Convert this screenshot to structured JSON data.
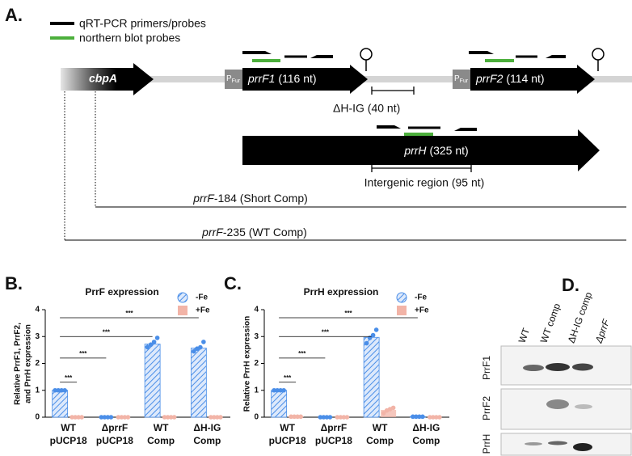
{
  "panel_a": {
    "label": "A.",
    "legend": [
      "qRT-PCR primers/probes",
      "northern blot probes"
    ],
    "cbpA": "cbpA",
    "promoter": {
      "p": "P",
      "sub": "Fur"
    },
    "prrF1": {
      "gene": "prrF1",
      "size": "(116 nt)"
    },
    "prrF2": {
      "gene": "prrF2",
      "size": "(114 nt)"
    },
    "prrH": {
      "gene": "prrH",
      "size": "(325 nt)"
    },
    "dhig": "ΔH-IG (40 nt)",
    "intergenic": "Intergenic region (95 nt)",
    "short_comp": {
      "gene": "prrF",
      "rest": "-184 (Short Comp)"
    },
    "wt_comp": {
      "gene": "prrF",
      "rest": "-235 (WT Comp)"
    }
  },
  "chart_data": [
    {
      "type": "bar",
      "label": "B.",
      "title": "PrrF expression",
      "ylabel": [
        "Relative PrrF1, PrrF2,",
        "and PrrH  expression"
      ],
      "categories": [
        [
          "WT",
          "pUCP18"
        ],
        [
          "ΔprrF",
          "pUCP18"
        ],
        [
          "WT",
          "Comp"
        ],
        [
          "ΔH-IG",
          "Comp"
        ]
      ],
      "series": [
        {
          "name": "-Fe",
          "color": "#4a8ee8",
          "hatch": true,
          "values": [
            1,
            0,
            2.72,
            2.57
          ],
          "points": [
            [
              1,
              1,
              1,
              1
            ],
            [
              0,
              0,
              0,
              0
            ],
            [
              2.6,
              2.7,
              2.8,
              2.95
            ],
            [
              2.45,
              2.55,
              2.6,
              2.8
            ]
          ]
        },
        {
          "name": "+Fe",
          "color": "#f2b4a7",
          "hatch": false,
          "values": [
            0,
            0,
            0,
            0
          ],
          "points": [
            [
              0,
              0,
              0,
              0
            ],
            [
              0,
              0,
              0,
              0
            ],
            [
              0,
              0,
              0,
              0
            ],
            [
              0,
              0,
              0,
              0
            ]
          ]
        }
      ],
      "ylim": [
        0,
        4
      ],
      "yticks": [
        0,
        1,
        2,
        3,
        4
      ],
      "significance": [
        {
          "label": "***",
          "y": 1.3,
          "from": [
            0,
            0
          ],
          "to": [
            0,
            1
          ]
        },
        {
          "label": "***",
          "y": 2.2,
          "from": [
            0,
            0
          ],
          "to": [
            1,
            0
          ]
        },
        {
          "label": "***",
          "y": 3.0,
          "from": [
            0,
            0
          ],
          "to": [
            2,
            0
          ]
        },
        {
          "label": "***",
          "y": 3.7,
          "from": [
            0,
            0
          ],
          "to": [
            3,
            0
          ]
        }
      ]
    },
    {
      "type": "bar",
      "label": "C.",
      "title": "PrrH expression",
      "ylabel": [
        "Relative PrrH expression"
      ],
      "categories": [
        [
          "WT",
          "pUCP18"
        ],
        [
          "ΔprrF",
          "pUCP18"
        ],
        [
          "WT",
          "Comp"
        ],
        [
          "ΔH-IG",
          "Comp"
        ]
      ],
      "series": [
        {
          "name": "-Fe",
          "color": "#4a8ee8",
          "hatch": true,
          "values": [
            1,
            0,
            2.97,
            0.02
          ],
          "points": [
            [
              1,
              1,
              1,
              1
            ],
            [
              0,
              0,
              0,
              0
            ],
            [
              2.75,
              2.95,
              3.05,
              3.25
            ],
            [
              0.02,
              0.02,
              0.02,
              0.02
            ]
          ]
        },
        {
          "name": "+Fe",
          "color": "#f2b4a7",
          "hatch": false,
          "values": [
            0.02,
            0,
            0.27,
            0
          ],
          "points": [
            [
              0.02,
              0.02,
              0.02,
              0.02
            ],
            [
              0,
              0,
              0,
              0
            ],
            [
              0.15,
              0.25,
              0.3,
              0.35
            ],
            [
              0,
              0,
              0,
              0
            ]
          ]
        }
      ],
      "ylim": [
        0,
        4
      ],
      "yticks": [
        0,
        1,
        2,
        3,
        4
      ],
      "significance": [
        {
          "label": "***",
          "y": 1.3,
          "from": [
            0,
            0
          ],
          "to": [
            0,
            1
          ]
        },
        {
          "label": "***",
          "y": 2.2,
          "from": [
            0,
            0
          ],
          "to": [
            1,
            0
          ]
        },
        {
          "label": "***",
          "y": 3.0,
          "from": [
            0,
            0
          ],
          "to": [
            2,
            0
          ]
        },
        {
          "label": "***",
          "y": 3.7,
          "from": [
            0,
            0
          ],
          "to": [
            3,
            0
          ]
        }
      ]
    }
  ],
  "panel_d": {
    "label": "D.",
    "columns": [
      "WT",
      "WT comp",
      "ΔH-IG comp",
      "ΔprrF"
    ],
    "rows": [
      "PrrF1",
      "PrrF2",
      "PrrH"
    ]
  }
}
